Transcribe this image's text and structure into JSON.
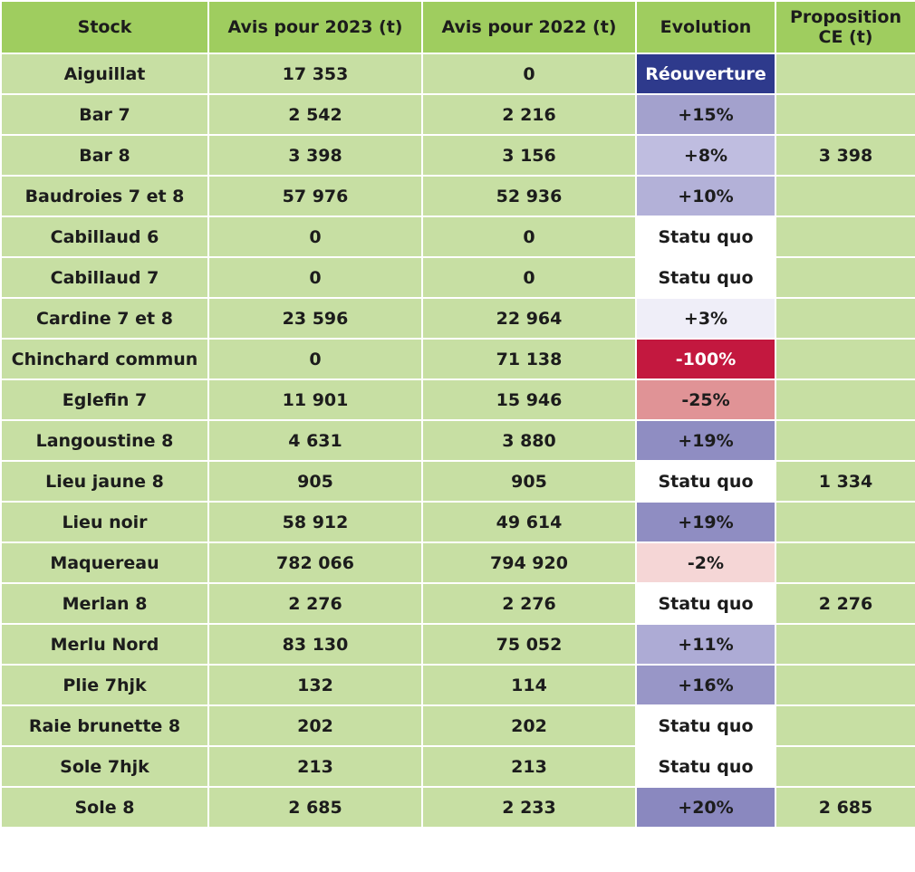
{
  "headers": {
    "stock": "Stock",
    "avis_2023": "Avis pour 2023 (t)",
    "avis_2022": "Avis pour 2022 (t)",
    "evolution": "Evolution",
    "proposition_ce": "Proposition CE (t)"
  },
  "colors": {
    "header_bg": "#9fcd5f",
    "cell_bg": "#c7dfa3",
    "reouverture": "#2e3a8c",
    "statu_quo": "#ffffff",
    "increase_strong": "#8d8bc0",
    "increase_medium": "#a7a5d1",
    "increase_light": "#bcbadd",
    "increase_faint": "#eeedf7",
    "decrease_strong": "#c3183f",
    "decrease_medium": "#e29396",
    "decrease_light": "#f5d6d6"
  },
  "rows": [
    {
      "stock": "Aiguillat",
      "avis_2023": "17 353",
      "avis_2022": "0",
      "evolution": "Réouverture",
      "evo_color": "#2e3a8c",
      "evo_text_white": true,
      "proposition_ce": ""
    },
    {
      "stock": "Bar 7",
      "avis_2023": "2 542",
      "avis_2022": "2 216",
      "evolution": "+15%",
      "evo_color": "#a3a1cd",
      "evo_text_white": false,
      "proposition_ce": ""
    },
    {
      "stock": "Bar 8",
      "avis_2023": "3 398",
      "avis_2022": "3 156",
      "evolution": "+8%",
      "evo_color": "#bfbde0",
      "evo_text_white": false,
      "proposition_ce": "3 398"
    },
    {
      "stock": "Baudroies 7 et 8",
      "avis_2023": "57 976",
      "avis_2022": "52 936",
      "evolution": "+10%",
      "evo_color": "#b3b1d8",
      "evo_text_white": false,
      "proposition_ce": ""
    },
    {
      "stock": "Cabillaud 6",
      "avis_2023": "0",
      "avis_2022": "0",
      "evolution": "Statu quo",
      "evo_color": "#ffffff",
      "evo_text_white": false,
      "proposition_ce": ""
    },
    {
      "stock": "Cabillaud 7",
      "avis_2023": "0",
      "avis_2022": "0",
      "evolution": "Statu quo",
      "evo_color": "#ffffff",
      "evo_text_white": false,
      "proposition_ce": ""
    },
    {
      "stock": "Cardine 7 et 8",
      "avis_2023": "23 596",
      "avis_2022": "22 964",
      "evolution": "+3%",
      "evo_color": "#efeef8",
      "evo_text_white": false,
      "proposition_ce": ""
    },
    {
      "stock": "Chinchard commun",
      "avis_2023": "0",
      "avis_2022": "71 138",
      "evolution": "-100%",
      "evo_color": "#c3183f",
      "evo_text_white": true,
      "proposition_ce": ""
    },
    {
      "stock": "Eglefin 7",
      "avis_2023": "11 901",
      "avis_2022": "15 946",
      "evolution": "-25%",
      "evo_color": "#e09396",
      "evo_text_white": false,
      "proposition_ce": ""
    },
    {
      "stock": "Langoustine 8",
      "avis_2023": "4 631",
      "avis_2022": "3 880",
      "evolution": "+19%",
      "evo_color": "#8f8dc2",
      "evo_text_white": false,
      "proposition_ce": ""
    },
    {
      "stock": "Lieu jaune 8",
      "avis_2023": "905",
      "avis_2022": "905",
      "evolution": "Statu quo",
      "evo_color": "#ffffff",
      "evo_text_white": false,
      "proposition_ce": "1 334"
    },
    {
      "stock": "Lieu noir",
      "avis_2023": "58 912",
      "avis_2022": "49 614",
      "evolution": "+19%",
      "evo_color": "#8f8dc2",
      "evo_text_white": false,
      "proposition_ce": ""
    },
    {
      "stock": "Maquereau",
      "avis_2023": "782 066",
      "avis_2022": "794 920",
      "evolution": "-2%",
      "evo_color": "#f5d6d6",
      "evo_text_white": false,
      "proposition_ce": ""
    },
    {
      "stock": "Merlan 8",
      "avis_2023": "2 276",
      "avis_2022": "2 276",
      "evolution": "Statu quo",
      "evo_color": "#ffffff",
      "evo_text_white": false,
      "proposition_ce": "2 276"
    },
    {
      "stock": "Merlu Nord",
      "avis_2023": "83 130",
      "avis_2022": "75 052",
      "evolution": "+11%",
      "evo_color": "#adabd5",
      "evo_text_white": false,
      "proposition_ce": ""
    },
    {
      "stock": "Plie 7hjk",
      "avis_2023": "132",
      "avis_2022": "114",
      "evolution": "+16%",
      "evo_color": "#9896c7",
      "evo_text_white": false,
      "proposition_ce": ""
    },
    {
      "stock": "Raie brunette 8",
      "avis_2023": "202",
      "avis_2022": "202",
      "evolution": "Statu quo",
      "evo_color": "#ffffff",
      "evo_text_white": false,
      "proposition_ce": ""
    },
    {
      "stock": "Sole 7hjk",
      "avis_2023": "213",
      "avis_2022": "213",
      "evolution": "Statu quo",
      "evo_color": "#ffffff",
      "evo_text_white": false,
      "proposition_ce": ""
    },
    {
      "stock": "Sole 8",
      "avis_2023": "2 685",
      "avis_2022": "2 233",
      "evolution": "+20%",
      "evo_color": "#8a88bf",
      "evo_text_white": false,
      "proposition_ce": "2 685"
    }
  ]
}
